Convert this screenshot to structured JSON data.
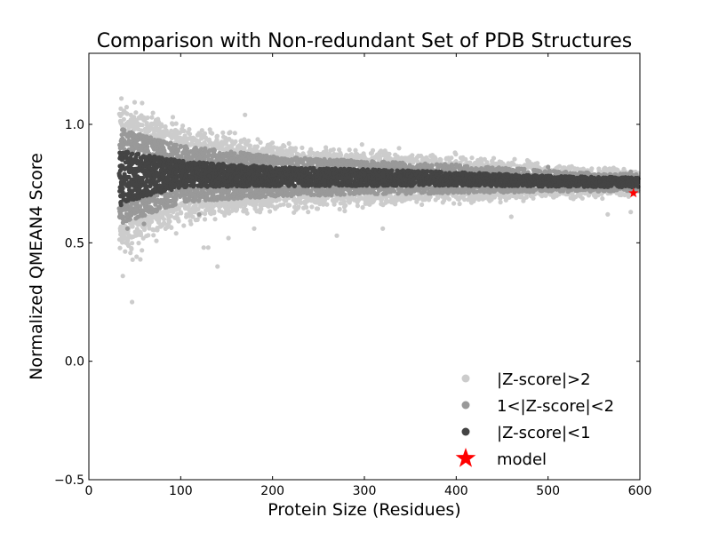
{
  "chart_data": {
    "type": "scatter",
    "title": "Comparison with Non-redundant Set of PDB Structures",
    "xlabel": "Protein Size (Residues)",
    "ylabel": "Normalized QMEAN4 Score",
    "xlim": [
      0,
      600
    ],
    "ylim": [
      -0.5,
      1.3
    ],
    "xticks": [
      0,
      100,
      200,
      300,
      400,
      500,
      600
    ],
    "xtick_labels": [
      "0",
      "100",
      "200",
      "300",
      "400",
      "500",
      "600"
    ],
    "yticks": [
      -0.5,
      0.0,
      0.5,
      1.0
    ],
    "ytick_labels": [
      "−0.5",
      "0.0",
      "0.5",
      "1.0"
    ],
    "grid": false,
    "legend_position": "lower-right",
    "series": [
      {
        "name": "|Z-score|>2",
        "color": "#cccccc",
        "sample_points": [
          [
            58,
            1.09
          ],
          [
            170,
            1.04
          ],
          [
            43,
            1.01
          ],
          [
            79,
            1.0
          ],
          [
            47,
            0.25
          ],
          [
            37,
            0.36
          ],
          [
            56,
            0.43
          ],
          [
            140,
            0.4
          ],
          [
            125,
            0.48
          ],
          [
            130,
            0.48
          ],
          [
            152,
            0.52
          ],
          [
            95,
            0.54
          ],
          [
            180,
            0.56
          ],
          [
            270,
            0.53
          ],
          [
            320,
            0.56
          ],
          [
            460,
            0.61
          ],
          [
            565,
            0.62
          ],
          [
            590,
            0.63
          ]
        ]
      },
      {
        "name": "1<|Z-score|<2",
        "color": "#999999",
        "sample_points": [
          [
            35,
            0.93
          ],
          [
            50,
            0.95
          ],
          [
            42,
            0.56
          ],
          [
            60,
            0.58
          ],
          [
            120,
            0.62
          ],
          [
            200,
            0.85
          ],
          [
            300,
            0.84
          ],
          [
            400,
            0.83
          ],
          [
            500,
            0.82
          ],
          [
            590,
            0.8
          ]
        ]
      },
      {
        "name": "|Z-score|<1",
        "color": "#444444",
        "sample_points": [
          [
            35,
            0.66
          ],
          [
            40,
            0.88
          ],
          [
            100,
            0.82
          ],
          [
            200,
            0.8
          ],
          [
            300,
            0.79
          ],
          [
            400,
            0.77
          ],
          [
            500,
            0.77
          ],
          [
            595,
            0.77
          ]
        ]
      },
      {
        "name": "model",
        "color": "#ff0000",
        "marker": "star",
        "points": [
          [
            593,
            0.71
          ]
        ]
      }
    ],
    "band_trend": {
      "x": [
        35,
        100,
        200,
        300,
        400,
        500,
        600
      ],
      "center": [
        0.78,
        0.79,
        0.78,
        0.775,
        0.77,
        0.76,
        0.755
      ],
      "inner_halfwidth": [
        0.11,
        0.055,
        0.04,
        0.035,
        0.028,
        0.022,
        0.02
      ],
      "middle_halfwidth": [
        0.2,
        0.12,
        0.085,
        0.07,
        0.06,
        0.045,
        0.035
      ],
      "outer_halfwidth": [
        0.3,
        0.19,
        0.13,
        0.11,
        0.09,
        0.07,
        0.05
      ]
    }
  }
}
